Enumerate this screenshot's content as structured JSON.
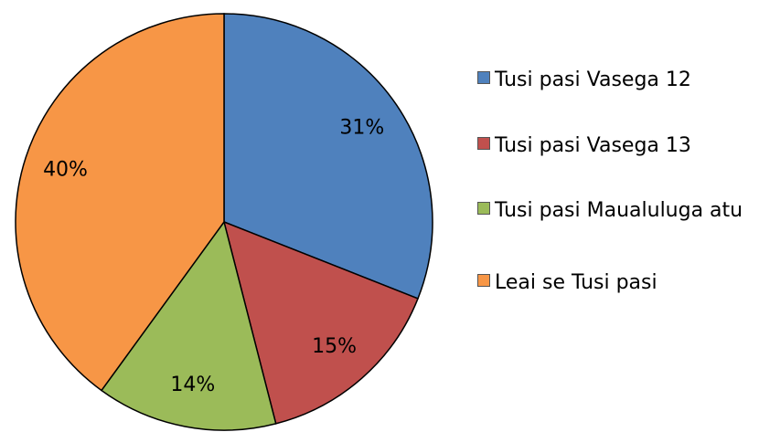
{
  "chart_data": {
    "type": "pie",
    "categories": [
      "Tusi pasi Vasega 12",
      "Tusi pasi Vasega 13",
      "Tusi pasi Maualuluga atu",
      "Leai se Tusi pasi"
    ],
    "values": [
      31,
      15,
      14,
      40
    ],
    "value_labels": [
      "31%",
      "15%",
      "14%",
      "40%"
    ],
    "colors": [
      "#4f81bd",
      "#c0504d",
      "#9bbb59",
      "#f79646"
    ]
  }
}
